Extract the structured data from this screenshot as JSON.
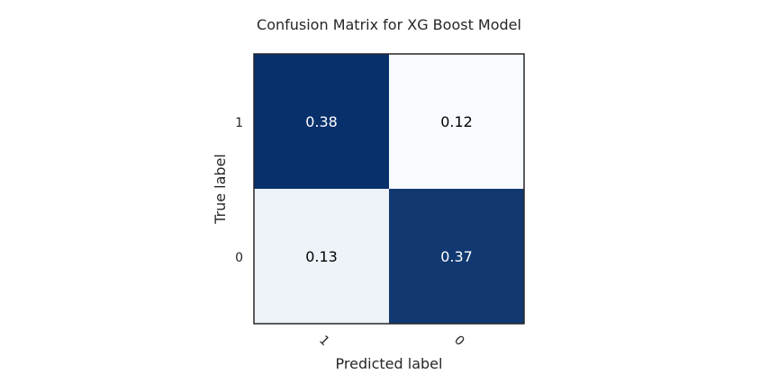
{
  "chart_data": {
    "type": "heatmap",
    "title": "Confusion Matrix for XG Boost Model",
    "xlabel": "Predicted label",
    "ylabel": "True label",
    "x_categories": [
      "1",
      "0"
    ],
    "y_categories": [
      "1",
      "0"
    ],
    "values": [
      [
        0.38,
        0.12
      ],
      [
        0.13,
        0.37
      ]
    ],
    "colormap": {
      "low": "#f7fbff",
      "high": "#08306b",
      "vmin": 0.12,
      "vmax": 0.38
    },
    "cell_text_colors": {
      "dark_cell": "#ffffff",
      "light_cell": "#000000"
    },
    "grid": false,
    "xtick_rotation": "45 degrees"
  }
}
